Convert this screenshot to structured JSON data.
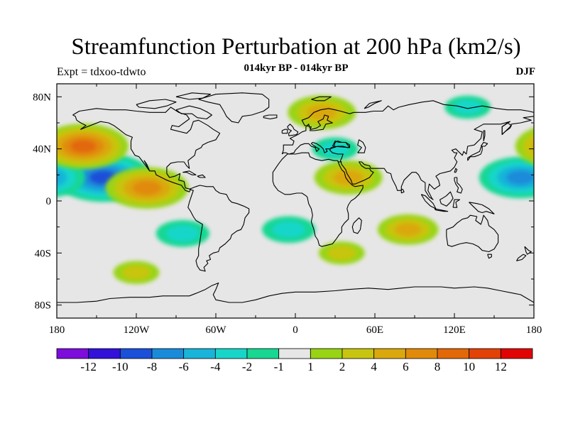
{
  "figure": {
    "title": "Streamfunction Perturbation at 200 hPa (km2/s)",
    "subtitle": "014kyr BP - 014kyr BP",
    "left_label": "Expt = tdxoo-tdwto",
    "right_label": "DJF"
  },
  "axes": {
    "lat_labels": [
      "80N",
      "40N",
      "0",
      "40S",
      "80S"
    ],
    "lon_labels": [
      "180",
      "120W",
      "60W",
      "0",
      "60E",
      "120E",
      "180"
    ]
  },
  "colorbar": {
    "colors": [
      "#7c0ddb",
      "#3311d9",
      "#1b50d8",
      "#1a8bd9",
      "#19b4d9",
      "#17d6c9",
      "#17d793",
      "#e6e6e6",
      "#99d414",
      "#c7c50f",
      "#daa80c",
      "#e18a0a",
      "#e26808",
      "#e34206",
      "#e10404"
    ],
    "labels": [
      "-12",
      "-10",
      "-8",
      "-6",
      "-4",
      "-2",
      "-1",
      "1",
      "2",
      "4",
      "6",
      "8",
      "10",
      "12"
    ]
  },
  "chart_data": {
    "type": "filled-contour-map",
    "title": "Streamfunction Perturbation at 200 hPa (km2/s)",
    "subtitle": "014kyr BP - 014kyr BP",
    "variable": "200 hPa streamfunction perturbation",
    "units": "km2/s",
    "season": "DJF",
    "experiment": "Expt = tdxoo-tdwto",
    "projection": "cylindrical equidistant",
    "lon_range": [
      -180,
      180
    ],
    "lat_range": [
      -90,
      90
    ],
    "contour_levels": [
      -12,
      -10,
      -8,
      -6,
      -4,
      -2,
      -1,
      1,
      2,
      4,
      6,
      8,
      10,
      12
    ],
    "features": [
      {
        "region": "central North Pacific",
        "lon": -145,
        "lat": 18,
        "value": -9,
        "sign": "negative"
      },
      {
        "region": "western Pacific east of Philippines",
        "lon": 170,
        "lat": 18,
        "value": -7,
        "sign": "negative"
      },
      {
        "region": "mid-latitude North Pacific",
        "lon": -160,
        "lat": 42,
        "value": 8,
        "sign": "positive"
      },
      {
        "region": "eastern tropical Pacific / Mexico",
        "lon": -112,
        "lat": 10,
        "value": 7,
        "sign": "positive"
      },
      {
        "region": "North Africa / Middle East",
        "lon": 40,
        "lat": 18,
        "value": 5,
        "sign": "positive"
      },
      {
        "region": "Arctic north of Europe",
        "lon": 20,
        "lat": 68,
        "value": 5,
        "sign": "positive"
      },
      {
        "region": "Europe / western Russia",
        "lon": 30,
        "lat": 40,
        "value": -2,
        "sign": "negative"
      },
      {
        "region": "South Pacific",
        "lon": -85,
        "lat": -25,
        "value": -3,
        "sign": "negative"
      },
      {
        "region": "South Atlantic",
        "lon": -5,
        "lat": -22,
        "value": -3,
        "sign": "negative"
      },
      {
        "region": "Indian Ocean",
        "lon": 85,
        "lat": -22,
        "value": 4,
        "sign": "positive"
      },
      {
        "region": "Southern Ocean south of Africa",
        "lon": 35,
        "lat": -40,
        "value": 2,
        "sign": "positive"
      },
      {
        "region": "Arctic / Siberia",
        "lon": 130,
        "lat": 72,
        "value": -2,
        "sign": "negative"
      },
      {
        "region": "southern Pacific high latitudes",
        "lon": -120,
        "lat": -55,
        "value": 2,
        "sign": "positive"
      }
    ]
  }
}
